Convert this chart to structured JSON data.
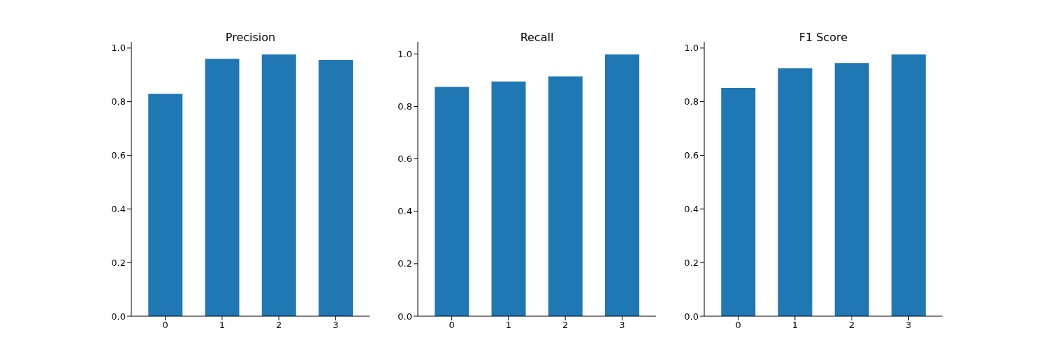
{
  "chart_data": [
    {
      "type": "bar",
      "title": "Precision",
      "categories": [
        "0",
        "1",
        "2",
        "3"
      ],
      "values": [
        0.829,
        0.96,
        0.976,
        0.955
      ],
      "color": "#1f77b4",
      "ylim": [
        0,
        1.023
      ],
      "yticks": [
        {
          "value": 0,
          "label": "0.0"
        },
        {
          "value": 0.2,
          "label": "0.2"
        },
        {
          "value": 0.4,
          "label": "0.4"
        },
        {
          "value": 0.6,
          "label": "0.6"
        },
        {
          "value": 0.8,
          "label": "0.8"
        },
        {
          "value": 1,
          "label": "1.0"
        }
      ]
    },
    {
      "type": "bar",
      "title": "Recall",
      "categories": [
        "0",
        "1",
        "2",
        "3"
      ],
      "values": [
        0.874,
        0.895,
        0.914,
        0.998
      ],
      "color": "#1f77b4",
      "ylim": [
        0,
        1.046
      ],
      "yticks": [
        {
          "value": 0,
          "label": "0.0"
        },
        {
          "value": 0.2,
          "label": "0.2"
        },
        {
          "value": 0.4,
          "label": "0.4"
        },
        {
          "value": 0.6,
          "label": "0.6"
        },
        {
          "value": 0.8,
          "label": "0.8"
        },
        {
          "value": 1,
          "label": "1.0"
        }
      ]
    },
    {
      "type": "bar",
      "title": "F1 Score",
      "categories": [
        "0",
        "1",
        "2",
        "3"
      ],
      "values": [
        0.851,
        0.925,
        0.944,
        0.976
      ],
      "color": "#1f77b4",
      "ylim": [
        0,
        1.023
      ],
      "yticks": [
        {
          "value": 0,
          "label": "0.0"
        },
        {
          "value": 0.2,
          "label": "0.2"
        },
        {
          "value": 0.4,
          "label": "0.4"
        },
        {
          "value": 0.6,
          "label": "0.6"
        },
        {
          "value": 0.8,
          "label": "0.8"
        },
        {
          "value": 1,
          "label": "1.0"
        }
      ]
    }
  ]
}
